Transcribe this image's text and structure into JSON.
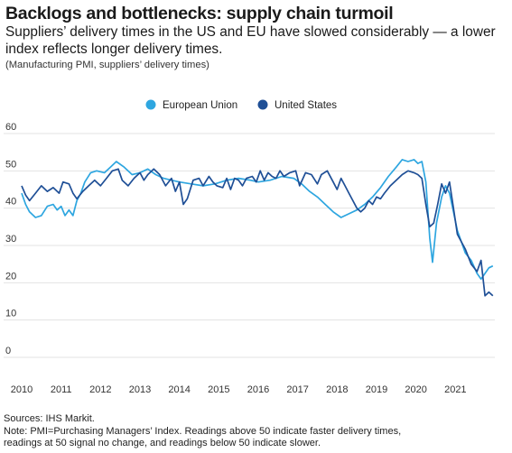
{
  "header": {
    "title": "Backlogs and bottlenecks: supply chain turmoil",
    "subtitle": "Suppliers’ delivery times in the US and EU have slowed considerably — a lower index reflects longer delivery times.",
    "note": "(Manufacturing PMI, suppliers’ delivery times)"
  },
  "footer": {
    "source": "Sources: IHS Markit.",
    "note_line1": "Note: PMI=Purchasing Managers’ Index. Readings above 50 indicate faster delivery times,",
    "note_line2": "readings at 50 signal no change, and readings below 50 indicate slower."
  },
  "colors": {
    "eu": "#2ea6e0",
    "us": "#1f4f96",
    "grid": "#e3e3e3",
    "text": "#1a1a1a"
  },
  "chart_data": {
    "type": "line",
    "title": "Backlogs and bottlenecks: supply chain turmoil",
    "ylim": [
      0,
      60
    ],
    "yticks": [
      0,
      10,
      20,
      30,
      40,
      50,
      60
    ],
    "xlim": [
      2010,
      2022
    ],
    "xticks": [
      "2010",
      "2011",
      "2012",
      "2013",
      "2014",
      "2015",
      "2016",
      "2017",
      "2018",
      "2019",
      "2020",
      "2021"
    ],
    "grid": true,
    "legend": "top-center",
    "series": [
      {
        "name": "European Union",
        "color": "#2ea6e0",
        "points": [
          [
            2010.0,
            44
          ],
          [
            2010.1,
            41
          ],
          [
            2010.2,
            39
          ],
          [
            2010.35,
            37.5
          ],
          [
            2010.5,
            38
          ],
          [
            2010.65,
            40.5
          ],
          [
            2010.8,
            41
          ],
          [
            2010.9,
            39.5
          ],
          [
            2011.0,
            40.5
          ],
          [
            2011.1,
            38
          ],
          [
            2011.2,
            39.5
          ],
          [
            2011.3,
            38
          ],
          [
            2011.4,
            42
          ],
          [
            2011.5,
            44
          ],
          [
            2011.6,
            47
          ],
          [
            2011.75,
            49.5
          ],
          [
            2011.9,
            50
          ],
          [
            2012.1,
            49.5
          ],
          [
            2012.25,
            51
          ],
          [
            2012.4,
            52.5
          ],
          [
            2012.6,
            51
          ],
          [
            2012.8,
            49
          ],
          [
            2013.0,
            49.5
          ],
          [
            2013.2,
            50.5
          ],
          [
            2013.4,
            49
          ],
          [
            2013.6,
            48
          ],
          [
            2013.8,
            47.5
          ],
          [
            2014.0,
            47
          ],
          [
            2014.3,
            46.5
          ],
          [
            2014.6,
            46
          ],
          [
            2014.9,
            46.5
          ],
          [
            2015.2,
            47.5
          ],
          [
            2015.5,
            48
          ],
          [
            2015.8,
            47.5
          ],
          [
            2016.0,
            47
          ],
          [
            2016.3,
            47.5
          ],
          [
            2016.6,
            48.5
          ],
          [
            2016.9,
            48
          ],
          [
            2017.1,
            46.5
          ],
          [
            2017.3,
            44.5
          ],
          [
            2017.5,
            43
          ],
          [
            2017.7,
            41
          ],
          [
            2017.9,
            39
          ],
          [
            2018.1,
            37.5
          ],
          [
            2018.3,
            38.5
          ],
          [
            2018.5,
            39.5
          ],
          [
            2018.7,
            41
          ],
          [
            2018.9,
            43
          ],
          [
            2019.1,
            45.5
          ],
          [
            2019.3,
            48.5
          ],
          [
            2019.5,
            51
          ],
          [
            2019.65,
            53
          ],
          [
            2019.8,
            52.5
          ],
          [
            2019.95,
            53
          ],
          [
            2020.05,
            52
          ],
          [
            2020.15,
            52.5
          ],
          [
            2020.25,
            47
          ],
          [
            2020.35,
            32
          ],
          [
            2020.42,
            25.5
          ],
          [
            2020.52,
            36
          ],
          [
            2020.65,
            43
          ],
          [
            2020.75,
            46
          ],
          [
            2020.85,
            44
          ],
          [
            2020.95,
            39
          ],
          [
            2021.05,
            34
          ],
          [
            2021.15,
            31
          ],
          [
            2021.25,
            28
          ],
          [
            2021.4,
            26
          ],
          [
            2021.55,
            22.5
          ],
          [
            2021.65,
            21
          ],
          [
            2021.75,
            22.5
          ],
          [
            2021.85,
            24
          ],
          [
            2021.95,
            24.5
          ]
        ]
      },
      {
        "name": "United States",
        "color": "#1f4f96",
        "points": [
          [
            2010.0,
            46
          ],
          [
            2010.1,
            43.5
          ],
          [
            2010.2,
            42
          ],
          [
            2010.35,
            44
          ],
          [
            2010.5,
            46
          ],
          [
            2010.65,
            44.5
          ],
          [
            2010.8,
            45.5
          ],
          [
            2010.95,
            44
          ],
          [
            2011.05,
            47
          ],
          [
            2011.2,
            46.5
          ],
          [
            2011.3,
            44
          ],
          [
            2011.4,
            42.5
          ],
          [
            2011.55,
            44.5
          ],
          [
            2011.7,
            46
          ],
          [
            2011.85,
            47.5
          ],
          [
            2012.0,
            46
          ],
          [
            2012.15,
            48
          ],
          [
            2012.3,
            50
          ],
          [
            2012.45,
            50.5
          ],
          [
            2012.55,
            47.5
          ],
          [
            2012.7,
            46
          ],
          [
            2012.85,
            48
          ],
          [
            2013.0,
            49.5
          ],
          [
            2013.1,
            47.5
          ],
          [
            2013.2,
            49
          ],
          [
            2013.35,
            50.5
          ],
          [
            2013.5,
            49
          ],
          [
            2013.65,
            46
          ],
          [
            2013.8,
            48
          ],
          [
            2013.9,
            44.5
          ],
          [
            2014.0,
            47
          ],
          [
            2014.1,
            41
          ],
          [
            2014.2,
            42.5
          ],
          [
            2014.35,
            47.5
          ],
          [
            2014.5,
            48
          ],
          [
            2014.6,
            46
          ],
          [
            2014.75,
            48.5
          ],
          [
            2014.85,
            47
          ],
          [
            2014.95,
            46
          ],
          [
            2015.1,
            45.5
          ],
          [
            2015.2,
            48
          ],
          [
            2015.3,
            45
          ],
          [
            2015.4,
            48
          ],
          [
            2015.5,
            47.5
          ],
          [
            2015.6,
            46
          ],
          [
            2015.7,
            48
          ],
          [
            2015.85,
            48.5
          ],
          [
            2015.95,
            47
          ],
          [
            2016.05,
            50
          ],
          [
            2016.15,
            47.5
          ],
          [
            2016.25,
            49.5
          ],
          [
            2016.35,
            48.5
          ],
          [
            2016.45,
            48
          ],
          [
            2016.55,
            50
          ],
          [
            2016.65,
            48.5
          ],
          [
            2016.8,
            49.5
          ],
          [
            2016.95,
            50
          ],
          [
            2017.05,
            46
          ],
          [
            2017.2,
            49.5
          ],
          [
            2017.35,
            49
          ],
          [
            2017.5,
            46.5
          ],
          [
            2017.6,
            49
          ],
          [
            2017.75,
            50
          ],
          [
            2017.9,
            47
          ],
          [
            2018.0,
            45
          ],
          [
            2018.1,
            48
          ],
          [
            2018.2,
            46
          ],
          [
            2018.3,
            44
          ],
          [
            2018.4,
            42
          ],
          [
            2018.5,
            40
          ],
          [
            2018.6,
            39
          ],
          [
            2018.7,
            40
          ],
          [
            2018.8,
            42
          ],
          [
            2018.9,
            41
          ],
          [
            2019.0,
            43
          ],
          [
            2019.1,
            42.5
          ],
          [
            2019.2,
            44
          ],
          [
            2019.35,
            46
          ],
          [
            2019.5,
            47.5
          ],
          [
            2019.65,
            49
          ],
          [
            2019.8,
            50
          ],
          [
            2019.95,
            49.5
          ],
          [
            2020.05,
            49
          ],
          [
            2020.15,
            48
          ],
          [
            2020.25,
            41
          ],
          [
            2020.35,
            35
          ],
          [
            2020.45,
            36
          ],
          [
            2020.55,
            41
          ],
          [
            2020.65,
            46.5
          ],
          [
            2020.75,
            44
          ],
          [
            2020.85,
            47
          ],
          [
            2020.95,
            40
          ],
          [
            2021.05,
            33
          ],
          [
            2021.15,
            31
          ],
          [
            2021.25,
            29
          ],
          [
            2021.4,
            25
          ],
          [
            2021.55,
            23
          ],
          [
            2021.65,
            26
          ],
          [
            2021.75,
            16.5
          ],
          [
            2021.85,
            17.5
          ],
          [
            2021.95,
            16.5
          ]
        ]
      }
    ]
  }
}
